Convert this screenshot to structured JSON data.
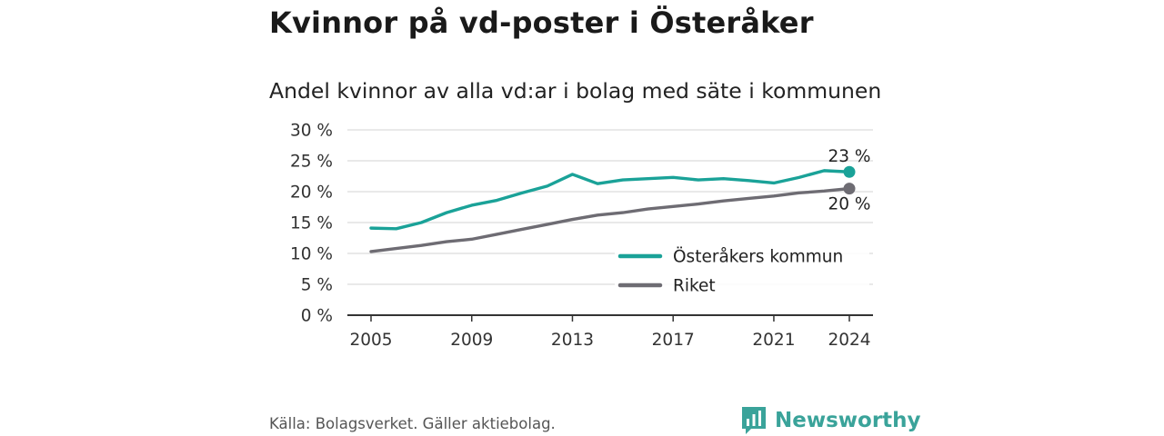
{
  "header": {
    "title": "Kvinnor på vd-poster i Österåker",
    "subtitle": "Andel kvinnor av alla vd:ar i bolag med säte i kommunen"
  },
  "footer": {
    "source": "Källa: Bolagsverket. Gäller aktiebolag.",
    "brand": "Newsworthy",
    "brand_icon": "newsworthy-logo-icon"
  },
  "colors": {
    "kommun": "#1aa298",
    "riket": "#6e6c73",
    "grid": "#dcdcdc",
    "axis": "#333333",
    "brand": "#3aa39a"
  },
  "chart_data": {
    "type": "line",
    "title": "Kvinnor på vd-poster i Österåker",
    "subtitle": "Andel kvinnor av alla vd:ar i bolag med säte i kommunen",
    "xlabel": "",
    "ylabel": "",
    "x": [
      2005,
      2006,
      2007,
      2008,
      2009,
      2010,
      2011,
      2012,
      2013,
      2014,
      2015,
      2016,
      2017,
      2018,
      2019,
      2020,
      2021,
      2022,
      2023,
      2024
    ],
    "xticks": [
      "2005",
      "2009",
      "2013",
      "2017",
      "2021",
      "2024"
    ],
    "yticks": [
      "0 %",
      "5 %",
      "10 %",
      "15 %",
      "20 %",
      "25 %",
      "30 %"
    ],
    "ylim": [
      0,
      30
    ],
    "grid": true,
    "legend_position": "bottom-right",
    "series": [
      {
        "name": "Österåkers kommun",
        "color": "#1aa298",
        "values": [
          14.1,
          14.0,
          15.0,
          16.6,
          17.8,
          18.6,
          19.8,
          20.9,
          22.8,
          21.3,
          21.9,
          22.1,
          22.3,
          21.9,
          22.1,
          21.8,
          21.4,
          22.3,
          23.4,
          23.2
        ],
        "end_label": "23 %"
      },
      {
        "name": "Riket",
        "color": "#6e6c73",
        "values": [
          10.3,
          10.8,
          11.3,
          11.9,
          12.3,
          13.1,
          13.9,
          14.7,
          15.5,
          16.2,
          16.6,
          17.2,
          17.6,
          18.0,
          18.5,
          18.9,
          19.3,
          19.8,
          20.1,
          20.5
        ],
        "end_label": "20 %"
      }
    ]
  }
}
